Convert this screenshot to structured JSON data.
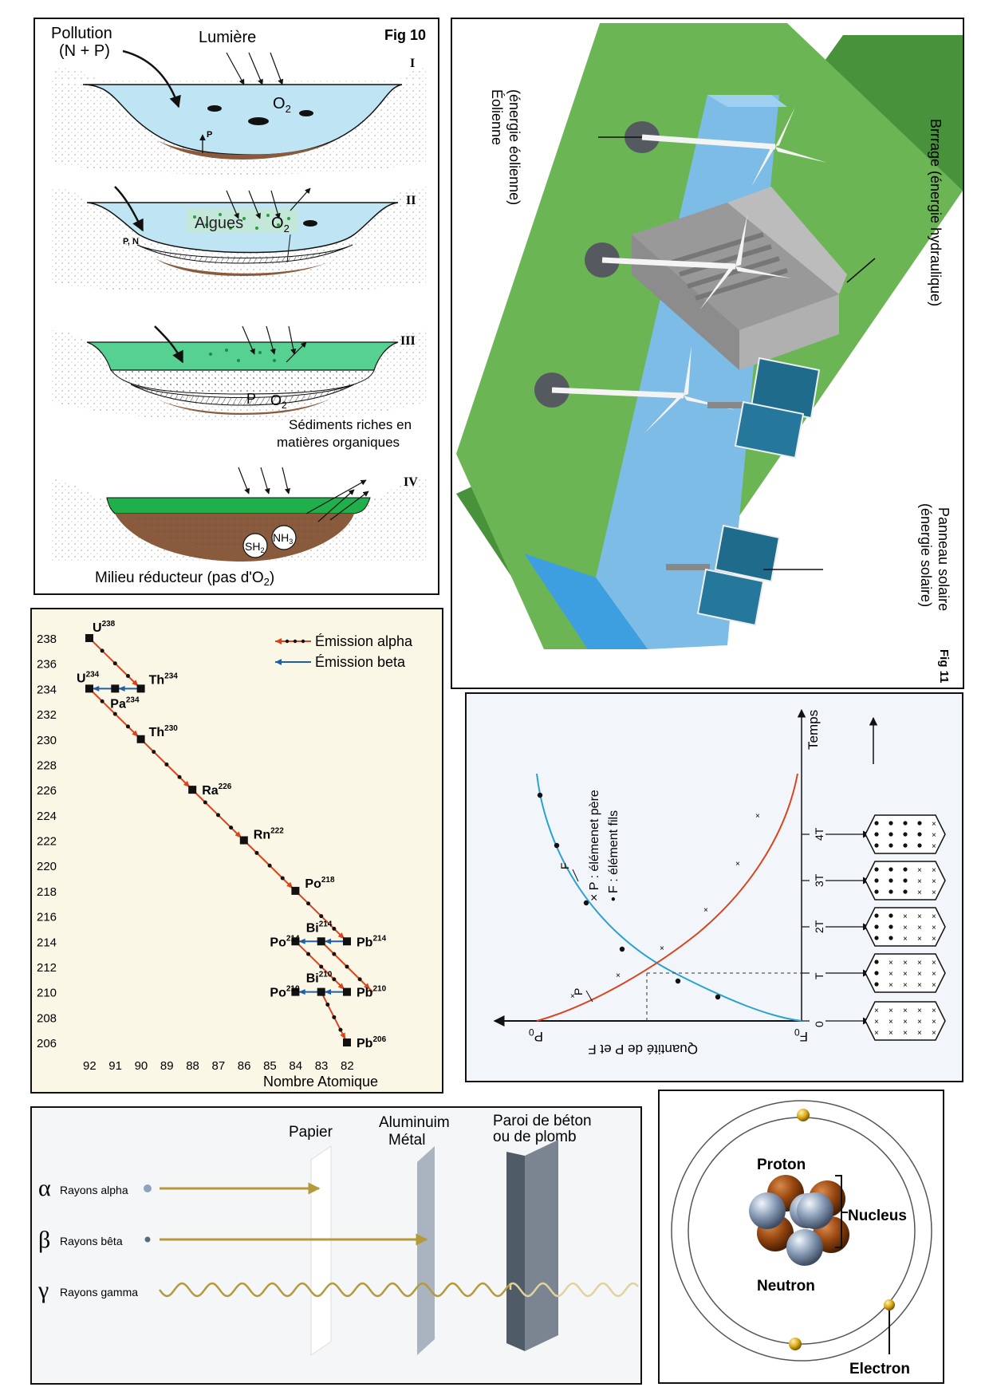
{
  "fig10": {
    "title": "Fig 10",
    "pollution_line1": "Pollution",
    "pollution_line2": "(N + P)",
    "lumiere": "Lumière",
    "o2": "O",
    "o2_sub": "2",
    "stage_labels": [
      "I",
      "II",
      "III",
      "IV"
    ],
    "p_label": "P",
    "pn_label": "P, N",
    "algues": "Algues",
    "sediments_line1": "Sédiments riches en",
    "sediments_line2": "matières organiques",
    "sh2": "SH",
    "nh3": "NH",
    "nh3_sub": "3",
    "milieu": "Milieu réducteur (pas d'O",
    "milieu_end": ")"
  },
  "fig11": {
    "title": "Fig 11",
    "eolienne_line1": "Éolienne",
    "eolienne_line2": "(énergie éolienne)",
    "barrage": "Brrrage (énergie hydraulique)",
    "panneau_line1": "Panneau solaire",
    "panneau_line2": "(énergie solaire)"
  },
  "decay": {
    "legend_alpha": "Émission alpha",
    "legend_beta": "Émission beta",
    "xlabel": "Nombre Atomique",
    "nuclides": [
      {
        "el": "U",
        "mass": "238"
      },
      {
        "el": "Th",
        "mass": "234"
      },
      {
        "el": "Pa",
        "mass": "234"
      },
      {
        "el": "U",
        "mass": "234"
      },
      {
        "el": "Th",
        "mass": "230"
      },
      {
        "el": "Ra",
        "mass": "226"
      },
      {
        "el": "Rn",
        "mass": "222"
      },
      {
        "el": "Po",
        "mass": "218"
      },
      {
        "el": "Bi",
        "mass": "214"
      },
      {
        "el": "Po",
        "mass": "214"
      },
      {
        "el": "Pb",
        "mass": "214"
      },
      {
        "el": "Bi",
        "mass": "210"
      },
      {
        "el": "Po",
        "mass": "210"
      },
      {
        "el": "Pb",
        "mass": "210"
      },
      {
        "el": "Pb",
        "mass": "206"
      }
    ],
    "colors": {
      "alpha": "#d9441c",
      "beta": "#1f5fa8"
    }
  },
  "chart_data": {
    "type": "line",
    "x_ticks": [
      "92",
      "91",
      "90",
      "89",
      "88",
      "87",
      "86",
      "85",
      "84",
      "83",
      "82"
    ],
    "y_ticks": [
      "238",
      "236",
      "234",
      "232",
      "230",
      "228",
      "226",
      "224",
      "222",
      "220",
      "218",
      "216",
      "214",
      "212",
      "210",
      "208",
      "206"
    ],
    "xlabel": "Nombre Atomique",
    "xlim": [
      92,
      82
    ],
    "ylim": [
      206,
      238
    ],
    "series": [
      {
        "name": "Émission alpha",
        "segments": [
          [
            [
              92,
              238
            ],
            [
              90,
              234
            ]
          ],
          [
            [
              92,
              234
            ],
            [
              90,
              230
            ]
          ],
          [
            [
              90,
              230
            ],
            [
              88,
              226
            ]
          ],
          [
            [
              88,
              226
            ],
            [
              86,
              222
            ]
          ],
          [
            [
              86,
              222
            ],
            [
              84,
              218
            ]
          ],
          [
            [
              84,
              218
            ],
            [
              82,
              214
            ]
          ],
          [
            [
              83,
              214
            ],
            [
              81,
              210
            ]
          ],
          [
            [
              84,
              214
            ],
            [
              82,
              210
            ]
          ],
          [
            [
              83,
              210
            ],
            [
              82,
              206
            ]
          ]
        ]
      },
      {
        "name": "Émission beta",
        "segments": [
          [
            [
              90,
              234
            ],
            [
              91,
              234
            ]
          ],
          [
            [
              91,
              234
            ],
            [
              92,
              234
            ]
          ],
          [
            [
              82,
              214
            ],
            [
              83,
              214
            ]
          ],
          [
            [
              83,
              214
            ],
            [
              84,
              214
            ]
          ],
          [
            [
              82,
              210
            ],
            [
              83,
              210
            ]
          ],
          [
            [
              83,
              210
            ],
            [
              84,
              210
            ]
          ]
        ]
      }
    ]
  },
  "halflife": {
    "legend_p": "P : élémenet père",
    "legend_f": "F : élément fils",
    "time_label": "Temps",
    "qty_label": "Quantité de P et F",
    "curve_f": "F",
    "curve_p": "P",
    "p0": "P",
    "p0_sub": "0",
    "f0": "F",
    "f0_sub": "0",
    "t_ticks": [
      "0",
      "T",
      "2T",
      "3T",
      "4T"
    ],
    "colors": {
      "f": "#2aa1cf",
      "p": "#d9441c"
    }
  },
  "radiation": {
    "papier": "Papier",
    "alu_line1": "Aluminuim",
    "alu_line2": "Métal",
    "wall_line1": "Paroi de béton",
    "wall_line2": "ou de plomb",
    "rows": [
      {
        "symbol": "α",
        "label": "Rayons alpha"
      },
      {
        "symbol": "β",
        "label": "Rayons bêta"
      },
      {
        "symbol": "γ",
        "label": "Rayons gamma"
      }
    ],
    "ray_color": "#b59a3c"
  },
  "atom": {
    "proton": "Proton",
    "nucleus": "Nucleus",
    "neutron": "Neutron",
    "electron": "Electron",
    "colors": {
      "proton": "#9b4a12",
      "neutron": "#8fa3bd",
      "electron": "#d8a514"
    }
  }
}
